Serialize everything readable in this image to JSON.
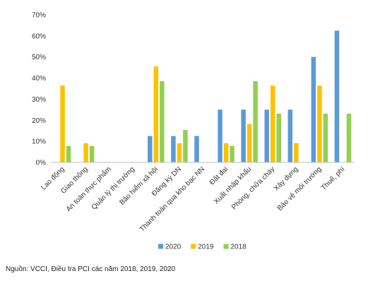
{
  "chart_data": {
    "type": "bar",
    "categories": [
      "Lao động",
      "Giao thông",
      "An toàn thực phẩm",
      "Quản lý thị trường",
      "Bảo hiểm xã hội",
      "Đăng ký DN",
      "Thanh toán qua kho bạc NN",
      "Đất đai",
      "Xuất nhập khẩu",
      "Phòng, chữa cháy",
      "Xây dựng",
      "Bảo vệ môi trường",
      "Thuế, phí"
    ],
    "series": [
      {
        "name": "2020",
        "color": "#5B9BD5",
        "values": [
          0,
          0,
          0,
          0,
          12.5,
          12.5,
          12.5,
          25,
          25,
          25,
          25,
          50,
          62.5
        ]
      },
      {
        "name": "2019",
        "color": "#FFC000",
        "values": [
          36.4,
          9.1,
          0,
          0,
          45.5,
          9.1,
          0,
          9.1,
          18.2,
          36.4,
          9.1,
          36.4,
          0
        ]
      },
      {
        "name": "2018",
        "color": "#92D050",
        "values": [
          7.7,
          7.7,
          0,
          0,
          38.5,
          15.4,
          0,
          7.7,
          38.5,
          23.1,
          0,
          23.1,
          23.1
        ]
      }
    ],
    "yticks": [
      "0%",
      "10%",
      "20%",
      "30%",
      "40%",
      "50%",
      "60%",
      "70%"
    ],
    "ylim": [
      0,
      70
    ],
    "legend_position": "bottom",
    "grid": false
  },
  "source": "Nguồn: VCCI, Điều tra PCI các năm 2018, 2019, 2020"
}
